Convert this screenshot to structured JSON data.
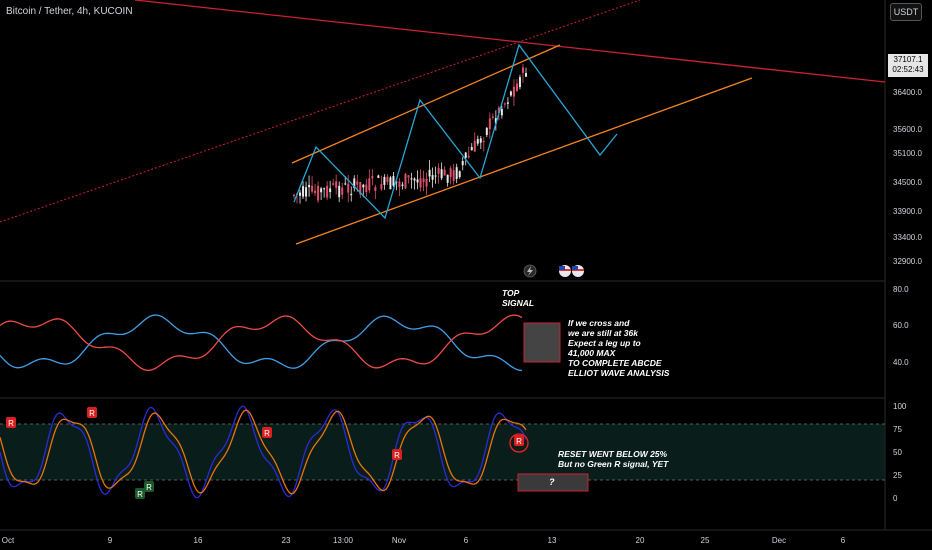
{
  "header": {
    "symbol_title": "Bitcoin / Tether, 4h, KUCOIN",
    "currency_button": "USDT"
  },
  "price_tag": {
    "price": "37107.1",
    "countdown": "02:52:43"
  },
  "axes": {
    "price_ticks": [
      "36400.0",
      "35600.0",
      "35100.0",
      "34500.0",
      "33900.0",
      "33400.0",
      "32900.0"
    ],
    "osc_ticks": [
      "80.0",
      "60.0",
      "40.0"
    ],
    "stoch_ticks": [
      "100",
      "75",
      "50",
      "25",
      "0"
    ],
    "time_ticks": [
      "Oct",
      "9",
      "16",
      "23",
      "13:00",
      "Nov",
      "6",
      "13",
      "20",
      "25",
      "Dec",
      "6"
    ]
  },
  "annotations": {
    "top_signal": "TOP\nSIGNAL",
    "cross_note": "If we cross and\nwe are still at 36k\nExpect a leg up to\n41,000 MAX\nTO COMPLETE ABCDE\nELLIOT WAVE ANALYSIS",
    "reset_note": "RESET WENT BELOW 25%\nBut no Green R signal, YET",
    "question_mark": "?"
  },
  "signals": {
    "red_label": "R",
    "green_label": "R"
  },
  "colors": {
    "background": "#000000",
    "up_candle": "#e8e8e8",
    "down_candle": "#e0506a",
    "channel": "#f5841f",
    "trend_red": "#cc2233",
    "wave": "#29a6d6",
    "osc_blue": "#3ea0e8",
    "osc_red": "#ef4a4a",
    "stoch_blue": "#2b2bd6",
    "stoch_orange": "#e8750e"
  }
}
